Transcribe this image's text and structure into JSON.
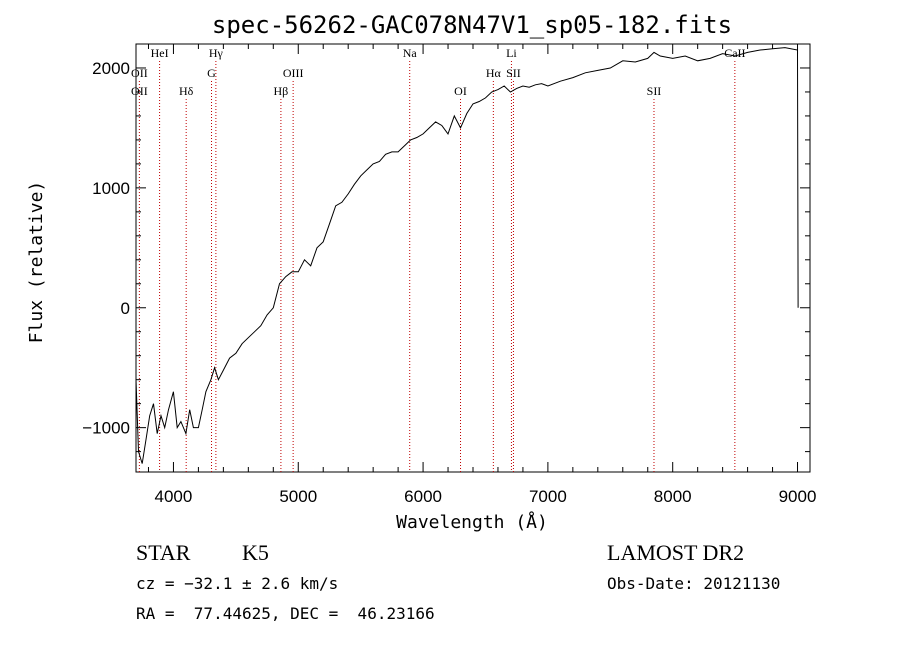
{
  "chart_data": {
    "type": "line",
    "title": "spec-56262-GAC078N47V1_sp05-182.fits",
    "xlabel": "Wavelength (Å)",
    "ylabel": "Flux (relative)",
    "xlim": [
      3700,
      9100
    ],
    "ylim": [
      -1370,
      2200
    ],
    "xticks": [
      4000,
      5000,
      6000,
      7000,
      8000,
      9000
    ],
    "yticks": [
      -1000,
      0,
      1000,
      2000
    ],
    "ytick_labels": [
      "−1000",
      "0",
      "1000",
      "2000"
    ],
    "grid": false,
    "series": [
      {
        "x": [
          3700,
          3720,
          3750,
          3780,
          3810,
          3840,
          3870,
          3900,
          3930,
          3960,
          4000,
          4030,
          4060,
          4100,
          4130,
          4160,
          4200,
          4230,
          4260,
          4300,
          4330,
          4360,
          4400,
          4450,
          4500,
          4550,
          4600,
          4650,
          4700,
          4750,
          4800,
          4850,
          4900,
          4950,
          5000,
          5050,
          5100,
          5150,
          5200,
          5250,
          5300,
          5350,
          5400,
          5450,
          5500,
          5550,
          5600,
          5650,
          5700,
          5750,
          5800,
          5850,
          5900,
          5950,
          6000,
          6050,
          6100,
          6150,
          6200,
          6250,
          6300,
          6350,
          6400,
          6450,
          6500,
          6550,
          6600,
          6650,
          6700,
          6750,
          6800,
          6850,
          6900,
          6950,
          7000,
          7100,
          7200,
          7300,
          7400,
          7500,
          7600,
          7700,
          7800,
          7850,
          7900,
          8000,
          8100,
          8200,
          8300,
          8400,
          8500,
          8600,
          8700,
          8800,
          8900,
          9000,
          9005
        ],
        "y": [
          -600,
          -1200,
          -1300,
          -1100,
          -900,
          -800,
          -1050,
          -900,
          -1000,
          -850,
          -700,
          -1000,
          -950,
          -1050,
          -850,
          -1000,
          -1000,
          -850,
          -700,
          -600,
          -500,
          -600,
          -520,
          -420,
          -380,
          -300,
          -250,
          -200,
          -150,
          -60,
          0,
          200,
          260,
          300,
          300,
          400,
          350,
          500,
          550,
          700,
          850,
          880,
          950,
          1030,
          1100,
          1150,
          1200,
          1220,
          1280,
          1300,
          1300,
          1350,
          1400,
          1420,
          1450,
          1500,
          1550,
          1520,
          1450,
          1600,
          1500,
          1620,
          1700,
          1720,
          1750,
          1800,
          1820,
          1850,
          1800,
          1830,
          1850,
          1840,
          1860,
          1870,
          1850,
          1890,
          1920,
          1960,
          1980,
          2000,
          2060,
          2050,
          2080,
          2130,
          2100,
          2080,
          2100,
          2060,
          2080,
          2120,
          2100,
          2130,
          2150,
          2160,
          2170,
          2150,
          0
        ]
      }
    ],
    "lines": [
      {
        "label": "OII",
        "x": 3727
      },
      {
        "label": "OII",
        "x": 3727
      },
      {
        "label": "HeI",
        "x": 3889
      },
      {
        "label": "Hδ",
        "x": 4102
      },
      {
        "label": "Hγ",
        "x": 4340
      },
      {
        "label": "G",
        "x": 4305
      },
      {
        "label": "Hβ",
        "x": 4861
      },
      {
        "label": "OIII",
        "x": 4959
      },
      {
        "label": "Na",
        "x": 5893
      },
      {
        "label": "OI",
        "x": 6300
      },
      {
        "label": "Hα",
        "x": 6563
      },
      {
        "label": "Li",
        "x": 6708
      },
      {
        "label": "SII",
        "x": 6724
      },
      {
        "label": "SII",
        "x": 7850
      },
      {
        "label": "CaII",
        "x": 8498
      }
    ]
  },
  "info": {
    "object_class": "STAR",
    "subclass": "K5",
    "survey": "LAMOST DR2",
    "redshift": "cz = −32.1 ± 2.6 km/s",
    "obs_date": "Obs-Date: 20121130",
    "coords": "RA =  77.44625, DEC =  46.23166"
  }
}
